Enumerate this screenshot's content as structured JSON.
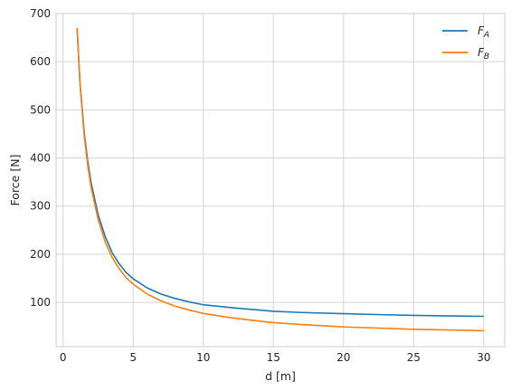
{
  "chart_data": {
    "type": "line",
    "title": "",
    "xlabel": "d [m]",
    "ylabel": "Force [N]",
    "xlim": [
      -0.5,
      31.5
    ],
    "ylim": [
      8,
      700
    ],
    "xticks": [
      0,
      5,
      10,
      15,
      20,
      25,
      30
    ],
    "yticks": [
      100,
      200,
      300,
      400,
      500,
      600,
      700
    ],
    "grid": true,
    "legend_position": "top-right",
    "x": [
      1,
      1.2,
      1.5,
      1.75,
      2,
      2.5,
      3,
      3.5,
      4,
      4.5,
      5,
      6,
      7,
      8,
      9,
      10,
      12,
      14,
      15,
      17,
      20,
      22,
      25,
      27,
      30
    ],
    "series": [
      {
        "name": "F_A",
        "label_main": "F",
        "label_sub": "A",
        "color": "#1f77b4",
        "values": [
          670,
          558,
          455,
          395,
          348,
          282,
          237,
          203,
          180,
          162,
          149,
          130,
          117,
          108,
          101,
          95,
          89,
          84,
          81.5,
          79,
          76.5,
          75,
          73,
          72,
          71
        ]
      },
      {
        "name": "F_B",
        "label_main": "F",
        "label_sub": "B",
        "color": "#ff7f0e",
        "values": [
          670,
          556,
          448,
          386,
          338,
          272,
          226,
          193,
          170,
          151,
          138,
          117,
          103,
          92,
          84,
          77,
          68,
          61,
          58,
          54,
          49,
          47,
          44,
          43,
          41
        ]
      }
    ]
  }
}
